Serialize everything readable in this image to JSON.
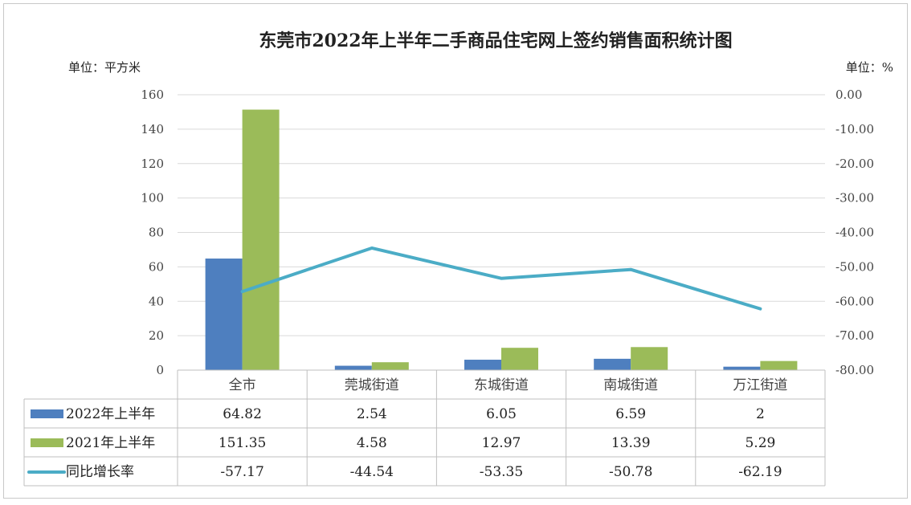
{
  "chart_data": {
    "type": "bar",
    "title": "东莞市2022年上半年二手商品住宅网上签约销售面积统计图",
    "ylabel_left": "单位：平方米",
    "ylabel_right": "单位：%",
    "categories": [
      "全市",
      "莞城街道",
      "东城街道",
      "南城街道",
      "万江街道"
    ],
    "ylim": [
      0,
      160
    ],
    "yticks": [
      "0",
      "20",
      "40",
      "60",
      "80",
      "100",
      "120",
      "140",
      "160"
    ],
    "y2lim": [
      -80,
      0
    ],
    "y2ticks": [
      "-80.00",
      "-70.00",
      "-60.00",
      "-50.00",
      "-40.00",
      "-30.00",
      "-20.00",
      "-10.00",
      "0.00"
    ],
    "grid": true,
    "series": [
      {
        "name": "2022年上半年",
        "type": "bar",
        "axis": "left",
        "color": "#4e7fbf",
        "values": [
          64.82,
          2.54,
          6.05,
          6.59,
          2
        ],
        "labels": [
          "64.82",
          "2.54",
          "6.05",
          "6.59",
          "2"
        ]
      },
      {
        "name": "2021年上半年",
        "type": "bar",
        "axis": "left",
        "color": "#9bbb59",
        "values": [
          151.35,
          4.58,
          12.97,
          13.39,
          5.29
        ],
        "labels": [
          "151.35",
          "4.58",
          "12.97",
          "13.39",
          "5.29"
        ]
      },
      {
        "name": "同比增长率",
        "type": "line",
        "axis": "right",
        "color": "#4bacc6",
        "values": [
          -57.17,
          -44.54,
          -53.35,
          -50.78,
          -62.19
        ],
        "labels": [
          "-57.17",
          "-44.54",
          "-53.35",
          "-50.78",
          "-62.19"
        ]
      }
    ]
  }
}
